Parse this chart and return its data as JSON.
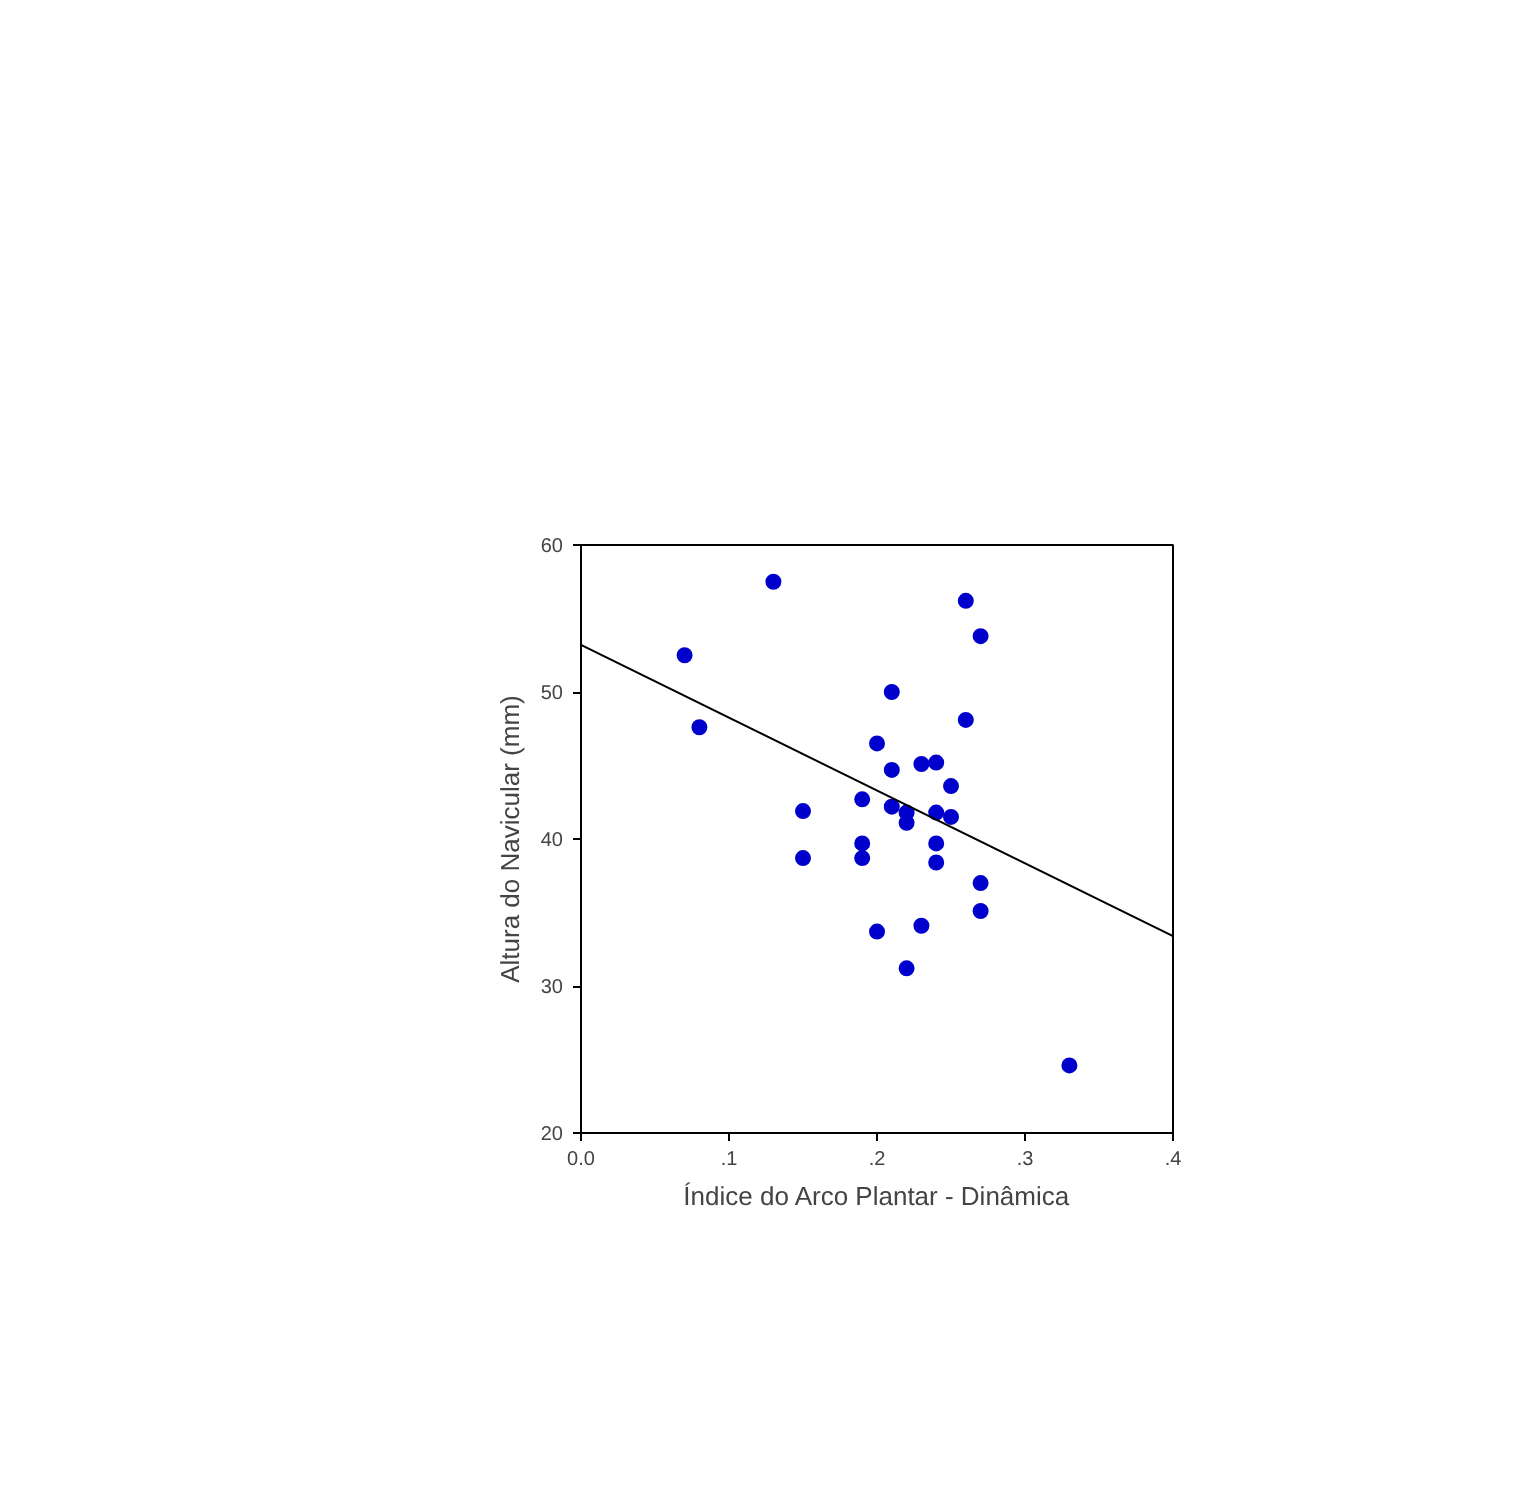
{
  "chart_data": {
    "type": "scatter",
    "xlabel": "Índice do Arco Plantar - Dinâmica",
    "ylabel": "Altura do Navicular (mm)",
    "x": [
      0.07,
      0.08,
      0.13,
      0.15,
      0.15,
      0.19,
      0.19,
      0.19,
      0.2,
      0.2,
      0.21,
      0.21,
      0.21,
      0.22,
      0.22,
      0.22,
      0.23,
      0.23,
      0.24,
      0.24,
      0.24,
      0.24,
      0.25,
      0.25,
      0.26,
      0.26,
      0.27,
      0.27,
      0.27,
      0.33
    ],
    "series": [
      {
        "color": "#0000cc",
        "marker": "circle",
        "values": [
          52.5,
          47.6,
          57.5,
          41.9,
          38.7,
          42.7,
          39.7,
          38.7,
          46.5,
          33.7,
          50.0,
          44.7,
          42.2,
          41.8,
          41.1,
          31.2,
          45.1,
          34.1,
          45.2,
          41.8,
          39.7,
          38.4,
          43.6,
          41.5,
          56.2,
          48.1,
          53.8,
          37.0,
          35.1,
          24.6
        ]
      },
      {
        "type": "line",
        "marker": "none",
        "color": "#000000",
        "x": [
          0,
          0.4
        ],
        "values": [
          53.2,
          33.4
        ]
      }
    ],
    "xlim": [
      0,
      0.4
    ],
    "ylim": [
      20,
      60
    ],
    "xticks": [
      {
        "value": 0,
        "label": "0.0"
      },
      {
        "value": 0.1,
        "label": ".1"
      },
      {
        "value": 0.2,
        "label": ".2"
      },
      {
        "value": 0.3,
        "label": ".3"
      },
      {
        "value": 0.4,
        "label": ".4"
      }
    ],
    "yticks": [
      20,
      30,
      40,
      50,
      60
    ],
    "grid": false
  }
}
